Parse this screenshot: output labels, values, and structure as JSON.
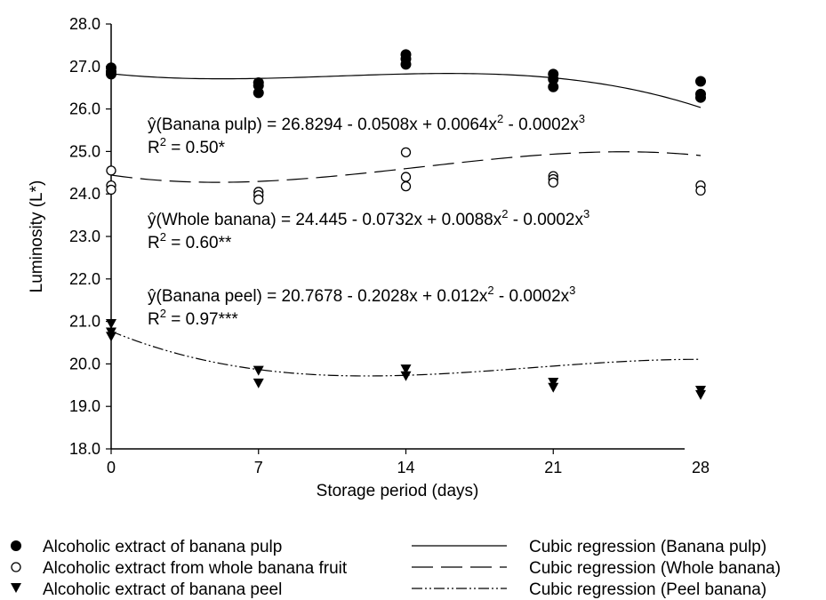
{
  "chart_data": {
    "type": "scatter",
    "title": "",
    "xlabel": "Storage period (days)",
    "ylabel": "Luminosity (L*)",
    "xlim": [
      0,
      28
    ],
    "ylim": [
      18.0,
      28.0
    ],
    "x_ticks": [
      "0",
      "7",
      "14",
      "21",
      "28"
    ],
    "y_ticks": [
      "18.0",
      "19.0",
      "20.0",
      "21.0",
      "22.0",
      "23.0",
      "24.0",
      "25.0",
      "26.0",
      "27.0",
      "28.0"
    ],
    "grid": false,
    "series": [
      {
        "name": "Alcoholic extract of banana pulp",
        "marker": "filled-circle",
        "points": [
          [
            0,
            26.97
          ],
          [
            0,
            26.88
          ],
          [
            0,
            26.82
          ],
          [
            7,
            26.62
          ],
          [
            7,
            26.55
          ],
          [
            7,
            26.38
          ],
          [
            14,
            27.28
          ],
          [
            14,
            27.18
          ],
          [
            14,
            27.05
          ],
          [
            21,
            26.82
          ],
          [
            21,
            26.7
          ],
          [
            21,
            26.52
          ],
          [
            28,
            26.65
          ],
          [
            28,
            26.35
          ],
          [
            28,
            26.27
          ]
        ]
      },
      {
        "name": "Alcoholic extract from whole banana fruit",
        "marker": "open-circle",
        "points": [
          [
            0,
            24.55
          ],
          [
            0,
            24.2
          ],
          [
            0,
            24.1
          ],
          [
            7,
            24.05
          ],
          [
            7,
            23.97
          ],
          [
            7,
            23.87
          ],
          [
            14,
            24.98
          ],
          [
            14,
            24.4
          ],
          [
            14,
            24.18
          ],
          [
            21,
            24.42
          ],
          [
            21,
            24.35
          ],
          [
            21,
            24.27
          ],
          [
            28,
            24.2
          ],
          [
            28,
            24.08
          ]
        ]
      },
      {
        "name": "Alcoholic extract of banana peel",
        "marker": "filled-triangle-down",
        "points": [
          [
            0,
            20.95
          ],
          [
            0,
            20.75
          ],
          [
            0,
            20.65
          ],
          [
            7,
            19.85
          ],
          [
            7,
            19.55
          ],
          [
            14,
            19.88
          ],
          [
            14,
            19.72
          ],
          [
            21,
            19.57
          ],
          [
            21,
            19.45
          ],
          [
            28,
            19.38
          ],
          [
            28,
            19.28
          ]
        ]
      }
    ],
    "regressions": [
      {
        "name": "Cubic regression (Banana pulp)",
        "dash": "solid",
        "coefficients": [
          26.8294,
          -0.0508,
          0.0064,
          -0.0002
        ],
        "equation_prefix": "ŷ(Banana pulp) = 26.8294 - 0.0508x + 0.0064x",
        "equation_mid": " - 0.0002x",
        "r2_prefix": "R",
        "r2_value": " = 0.50*"
      },
      {
        "name": "Cubic regression (Whole banana)",
        "dash": "long-dash",
        "coefficients": [
          24.445,
          -0.0732,
          0.0088,
          -0.0002
        ],
        "equation_prefix": "ŷ(Whole banana) = 24.445 - 0.0732x + 0.0088x",
        "equation_mid": " - 0.0002x",
        "r2_prefix": "R",
        "r2_value": " = 0.60**"
      },
      {
        "name": "Cubic regression (Peel banana)",
        "dash": "dash-dot-dot",
        "coefficients": [
          20.7678,
          -0.2028,
          0.012,
          -0.0002
        ],
        "equation_prefix": "ŷ(Banana peel) = 20.7678 - 0.2028x + 0.012x",
        "equation_mid": " - 0.0002x",
        "r2_prefix": "R",
        "r2_value": " = 0.97***"
      }
    ],
    "superscripts": {
      "square": "2",
      "cube": "3"
    },
    "legend_position": "bottom",
    "colors": {
      "ink": "#000000",
      "background": "#ffffff"
    }
  }
}
